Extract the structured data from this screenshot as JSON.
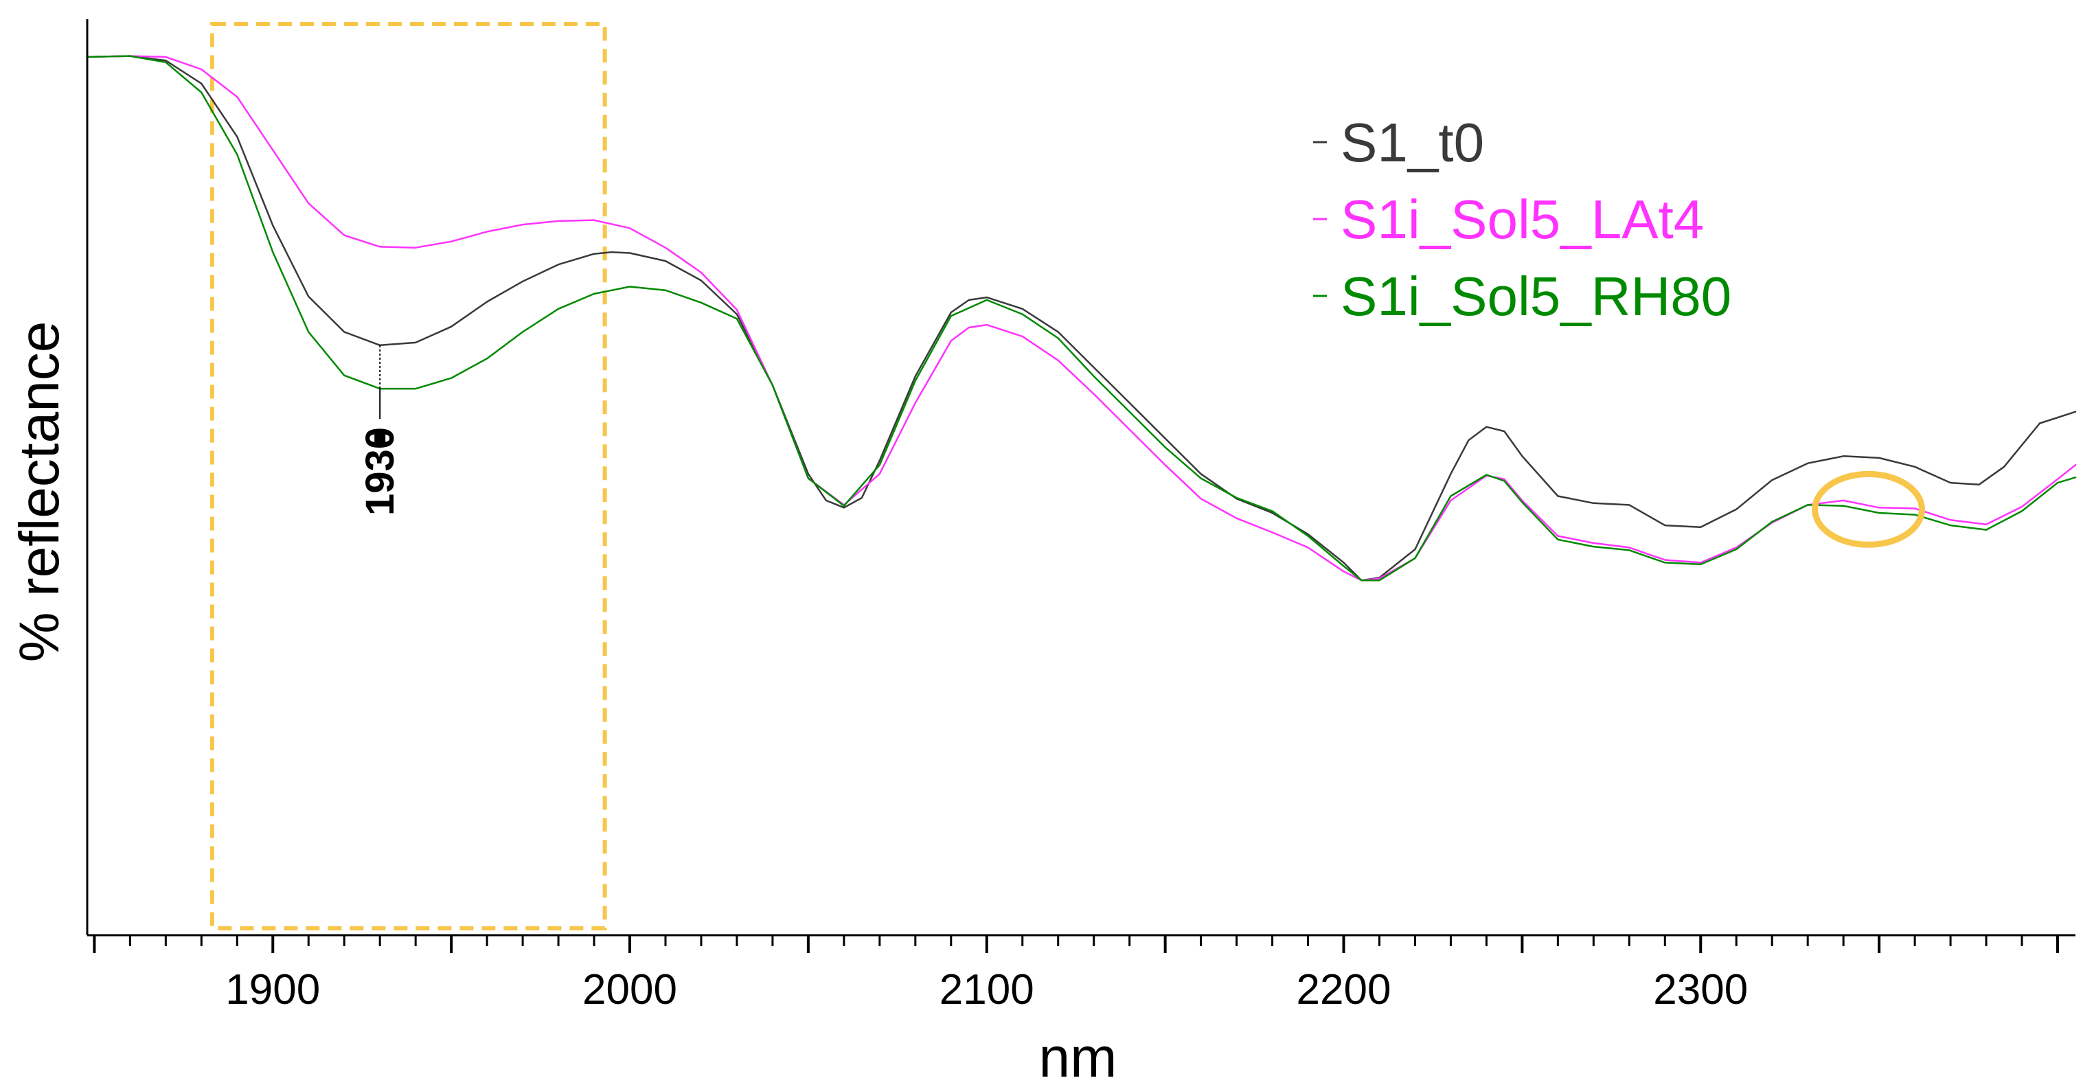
{
  "chart_data": {
    "type": "line",
    "title": "",
    "xlabel": "nm",
    "ylabel": "% reflectance",
    "xlim": [
      1848,
      2405
    ],
    "ylim": [
      0,
      1
    ],
    "x_ticks": [
      1900,
      2000,
      2100,
      2200,
      2300
    ],
    "x_tick_labels": [
      "1900",
      "2000",
      "2100",
      "2200",
      "2300"
    ],
    "x_minor_step": 10,
    "y_tick_labels": [],
    "grid": false,
    "legend_position": "top-right",
    "series": [
      {
        "name": "S1_t0",
        "color": "#3a3a3a",
        "points": [
          [
            1848,
            0.99
          ],
          [
            1860,
            0.991
          ],
          [
            1870,
            0.986
          ],
          [
            1880,
            0.96
          ],
          [
            1890,
            0.9
          ],
          [
            1900,
            0.8
          ],
          [
            1910,
            0.72
          ],
          [
            1920,
            0.68
          ],
          [
            1930,
            0.665
          ],
          [
            1940,
            0.668
          ],
          [
            1950,
            0.686
          ],
          [
            1960,
            0.714
          ],
          [
            1970,
            0.737
          ],
          [
            1980,
            0.756
          ],
          [
            1990,
            0.768
          ],
          [
            1995,
            0.77
          ],
          [
            2000,
            0.769
          ],
          [
            2010,
            0.76
          ],
          [
            2020,
            0.738
          ],
          [
            2030,
            0.7
          ],
          [
            2040,
            0.62
          ],
          [
            2050,
            0.52
          ],
          [
            2055,
            0.49
          ],
          [
            2060,
            0.482
          ],
          [
            2065,
            0.493
          ],
          [
            2070,
            0.535
          ],
          [
            2080,
            0.63
          ],
          [
            2090,
            0.702
          ],
          [
            2095,
            0.716
          ],
          [
            2100,
            0.719
          ],
          [
            2110,
            0.706
          ],
          [
            2120,
            0.68
          ],
          [
            2130,
            0.64
          ],
          [
            2140,
            0.6
          ],
          [
            2150,
            0.56
          ],
          [
            2160,
            0.52
          ],
          [
            2170,
            0.492
          ],
          [
            2180,
            0.476
          ],
          [
            2190,
            0.452
          ],
          [
            2200,
            0.42
          ],
          [
            2205,
            0.4
          ],
          [
            2210,
            0.403
          ],
          [
            2220,
            0.435
          ],
          [
            2230,
            0.52
          ],
          [
            2235,
            0.558
          ],
          [
            2240,
            0.573
          ],
          [
            2245,
            0.568
          ],
          [
            2250,
            0.54
          ],
          [
            2260,
            0.495
          ],
          [
            2270,
            0.487
          ],
          [
            2280,
            0.485
          ],
          [
            2290,
            0.462
          ],
          [
            2300,
            0.46
          ],
          [
            2310,
            0.48
          ],
          [
            2320,
            0.513
          ],
          [
            2330,
            0.532
          ],
          [
            2340,
            0.54
          ],
          [
            2350,
            0.538
          ],
          [
            2360,
            0.528
          ],
          [
            2370,
            0.51
          ],
          [
            2378,
            0.508
          ],
          [
            2385,
            0.528
          ],
          [
            2395,
            0.577
          ],
          [
            2405,
            0.59
          ]
        ]
      },
      {
        "name": "S1i_Sol5_LAt4",
        "color": "#ff33ff",
        "points": [
          [
            1848,
            0.99
          ],
          [
            1860,
            0.991
          ],
          [
            1870,
            0.99
          ],
          [
            1880,
            0.976
          ],
          [
            1890,
            0.945
          ],
          [
            1900,
            0.885
          ],
          [
            1910,
            0.825
          ],
          [
            1920,
            0.789
          ],
          [
            1930,
            0.776
          ],
          [
            1940,
            0.775
          ],
          [
            1950,
            0.782
          ],
          [
            1960,
            0.793
          ],
          [
            1970,
            0.801
          ],
          [
            1980,
            0.805
          ],
          [
            1990,
            0.806
          ],
          [
            2000,
            0.797
          ],
          [
            2010,
            0.775
          ],
          [
            2020,
            0.747
          ],
          [
            2030,
            0.705
          ],
          [
            2040,
            0.62
          ],
          [
            2050,
            0.515
          ],
          [
            2060,
            0.485
          ],
          [
            2070,
            0.52
          ],
          [
            2080,
            0.6
          ],
          [
            2090,
            0.67
          ],
          [
            2095,
            0.685
          ],
          [
            2100,
            0.688
          ],
          [
            2110,
            0.675
          ],
          [
            2120,
            0.648
          ],
          [
            2130,
            0.61
          ],
          [
            2140,
            0.57
          ],
          [
            2150,
            0.53
          ],
          [
            2160,
            0.492
          ],
          [
            2170,
            0.47
          ],
          [
            2180,
            0.454
          ],
          [
            2190,
            0.437
          ],
          [
            2200,
            0.41
          ],
          [
            2205,
            0.4
          ],
          [
            2210,
            0.402
          ],
          [
            2220,
            0.425
          ],
          [
            2230,
            0.49
          ],
          [
            2240,
            0.518
          ],
          [
            2245,
            0.514
          ],
          [
            2250,
            0.49
          ],
          [
            2260,
            0.45
          ],
          [
            2270,
            0.442
          ],
          [
            2280,
            0.437
          ],
          [
            2290,
            0.423
          ],
          [
            2300,
            0.42
          ],
          [
            2310,
            0.437
          ],
          [
            2320,
            0.465
          ],
          [
            2330,
            0.485
          ],
          [
            2340,
            0.49
          ],
          [
            2350,
            0.482
          ],
          [
            2360,
            0.481
          ],
          [
            2370,
            0.468
          ],
          [
            2380,
            0.463
          ],
          [
            2390,
            0.483
          ],
          [
            2400,
            0.514
          ],
          [
            2405,
            0.53
          ]
        ]
      },
      {
        "name": "S1i_Sol5_RH80",
        "color": "#008a00",
        "points": [
          [
            1848,
            0.99
          ],
          [
            1860,
            0.991
          ],
          [
            1870,
            0.984
          ],
          [
            1880,
            0.95
          ],
          [
            1890,
            0.88
          ],
          [
            1900,
            0.77
          ],
          [
            1910,
            0.68
          ],
          [
            1920,
            0.631
          ],
          [
            1930,
            0.616
          ],
          [
            1940,
            0.616
          ],
          [
            1950,
            0.628
          ],
          [
            1960,
            0.65
          ],
          [
            1970,
            0.68
          ],
          [
            1980,
            0.706
          ],
          [
            1990,
            0.723
          ],
          [
            2000,
            0.731
          ],
          [
            2010,
            0.727
          ],
          [
            2020,
            0.713
          ],
          [
            2030,
            0.695
          ],
          [
            2040,
            0.62
          ],
          [
            2050,
            0.515
          ],
          [
            2060,
            0.484
          ],
          [
            2070,
            0.53
          ],
          [
            2080,
            0.625
          ],
          [
            2090,
            0.698
          ],
          [
            2100,
            0.716
          ],
          [
            2110,
            0.7
          ],
          [
            2120,
            0.673
          ],
          [
            2130,
            0.63
          ],
          [
            2140,
            0.59
          ],
          [
            2150,
            0.55
          ],
          [
            2160,
            0.515
          ],
          [
            2170,
            0.493
          ],
          [
            2180,
            0.478
          ],
          [
            2190,
            0.45
          ],
          [
            2200,
            0.416
          ],
          [
            2205,
            0.4
          ],
          [
            2210,
            0.4
          ],
          [
            2220,
            0.425
          ],
          [
            2230,
            0.495
          ],
          [
            2240,
            0.519
          ],
          [
            2245,
            0.512
          ],
          [
            2250,
            0.488
          ],
          [
            2260,
            0.446
          ],
          [
            2270,
            0.438
          ],
          [
            2280,
            0.434
          ],
          [
            2290,
            0.42
          ],
          [
            2300,
            0.418
          ],
          [
            2310,
            0.435
          ],
          [
            2320,
            0.466
          ],
          [
            2330,
            0.485
          ],
          [
            2340,
            0.484
          ],
          [
            2350,
            0.476
          ],
          [
            2360,
            0.474
          ],
          [
            2370,
            0.462
          ],
          [
            2380,
            0.457
          ],
          [
            2390,
            0.478
          ],
          [
            2400,
            0.51
          ],
          [
            2405,
            0.516
          ]
        ]
      }
    ],
    "annotations": [
      {
        "type": "peak_label",
        "x": 1930,
        "text": "1930"
      },
      {
        "type": "dashed_box",
        "x_range": [
          1883,
          1993
        ],
        "y_range": [
          0,
          1
        ],
        "color": "#f7c64a"
      },
      {
        "type": "ellipse",
        "x": 2347,
        "y": 0.48,
        "rx_nm": 15,
        "color": "#f7c64a"
      }
    ]
  }
}
